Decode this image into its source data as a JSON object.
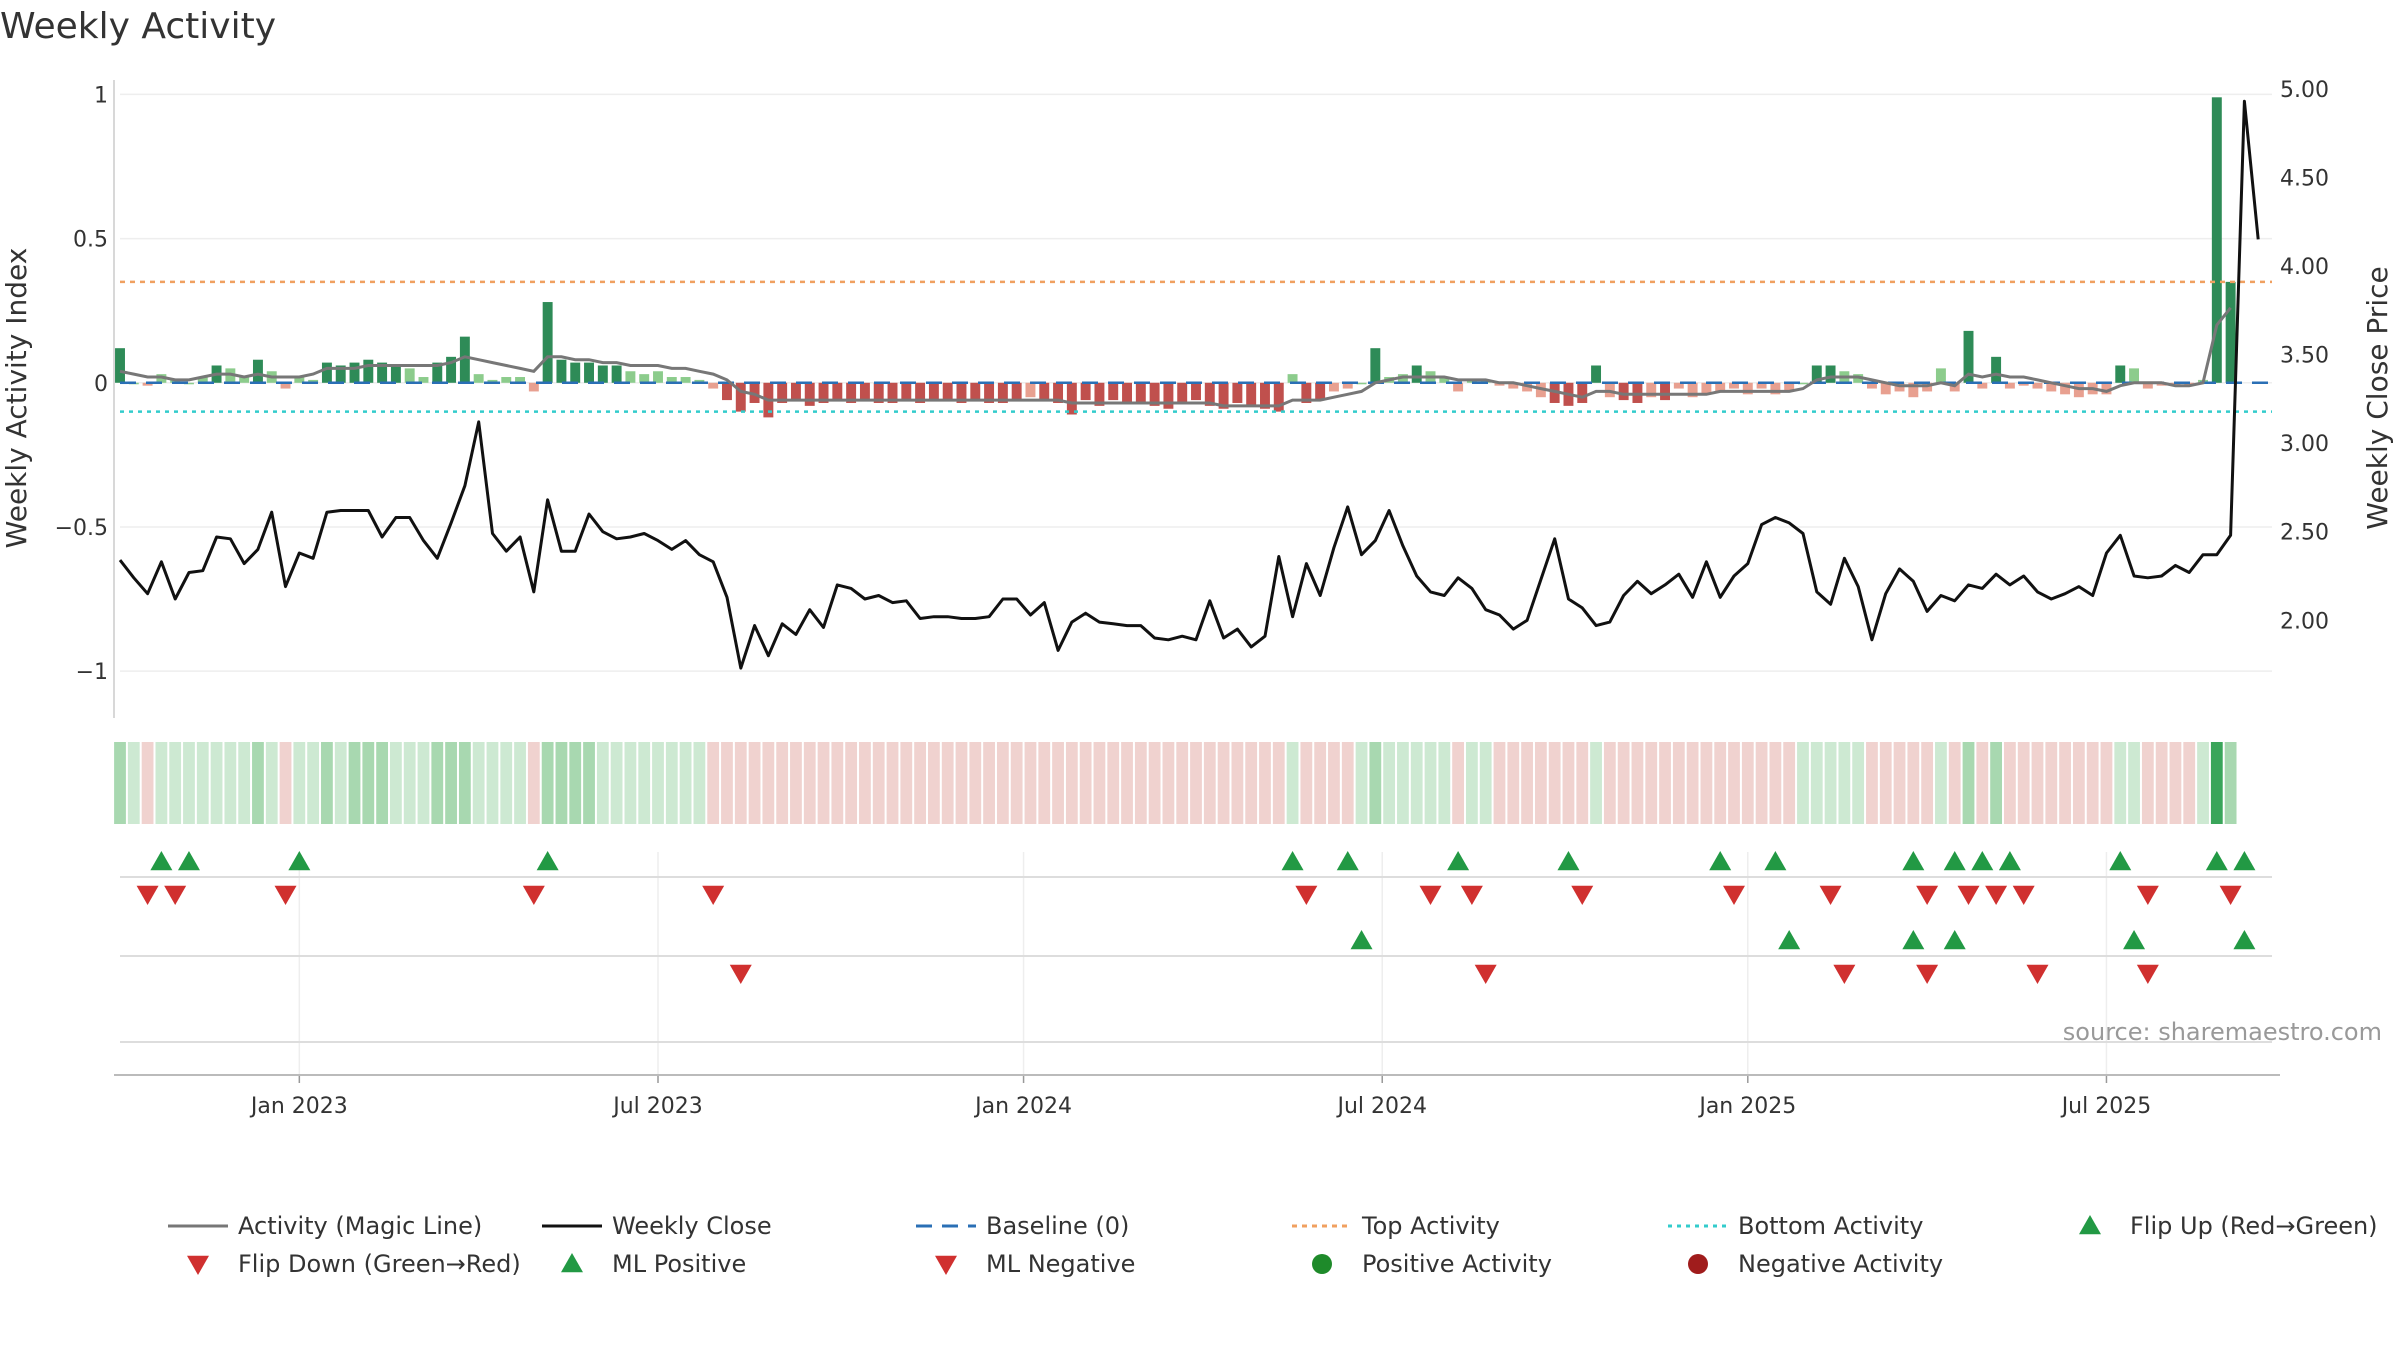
{
  "chart_data": {
    "type": "bar+line",
    "title": "Weekly Activity",
    "ylabel_left": "Weekly Activity Index",
    "ylabel_right": "Weekly Close Price",
    "source": "source: sharemaestro.com",
    "yleft_range": [
      -1.1,
      1.05
    ],
    "yleft_ticks": [
      {
        "v": 1,
        "label": "1"
      },
      {
        "v": 0.5,
        "label": "0.5"
      },
      {
        "v": 0,
        "label": "0"
      },
      {
        "v": -0.5,
        "label": "−0.5"
      },
      {
        "v": -1,
        "label": "−1"
      }
    ],
    "yright_range": [
      1.55,
      5.05
    ],
    "yright_ticks": [
      "5.00",
      "4.50",
      "4.00",
      "3.50",
      "3.00",
      "2.50",
      "2.00"
    ],
    "x_ticks": [
      {
        "week": 13,
        "label": "Jan 2023"
      },
      {
        "week": 39,
        "label": "Jul 2023"
      },
      {
        "week": 65.5,
        "label": "Jan 2024"
      },
      {
        "week": 91.5,
        "label": "Jul 2024"
      },
      {
        "week": 118,
        "label": "Jan 2025"
      },
      {
        "week": 144,
        "label": "Jul 2025"
      }
    ],
    "top_activity": 0.35,
    "bottom_activity": -0.1,
    "weeks": 157,
    "activity": [
      0.12,
      0.0,
      -0.01,
      0.03,
      0.01,
      0.0,
      0.02,
      0.06,
      0.05,
      0.02,
      0.08,
      0.04,
      -0.02,
      0.02,
      0.01,
      0.07,
      0.06,
      0.07,
      0.08,
      0.07,
      0.06,
      0.05,
      0.02,
      0.07,
      0.09,
      0.16,
      0.03,
      0.01,
      0.02,
      0.02,
      -0.03,
      0.28,
      0.08,
      0.07,
      0.07,
      0.06,
      0.06,
      0.04,
      0.03,
      0.04,
      0.02,
      0.02,
      0.01,
      -0.02,
      -0.06,
      -0.1,
      -0.07,
      -0.12,
      -0.07,
      -0.06,
      -0.08,
      -0.07,
      -0.06,
      -0.07,
      -0.06,
      -0.07,
      -0.07,
      -0.06,
      -0.07,
      -0.06,
      -0.06,
      -0.07,
      -0.06,
      -0.07,
      -0.07,
      -0.06,
      -0.05,
      -0.06,
      -0.07,
      -0.11,
      -0.06,
      -0.08,
      -0.06,
      -0.07,
      -0.07,
      -0.08,
      -0.09,
      -0.07,
      -0.06,
      -0.08,
      -0.09,
      -0.07,
      -0.08,
      -0.09,
      -0.1,
      0.03,
      -0.07,
      -0.06,
      -0.03,
      -0.02,
      0.0,
      0.12,
      0.02,
      0.03,
      0.06,
      0.04,
      0.02,
      -0.03,
      0.01,
      0.01,
      -0.01,
      -0.02,
      -0.03,
      -0.05,
      -0.07,
      -0.08,
      -0.07,
      0.06,
      -0.05,
      -0.06,
      -0.07,
      -0.05,
      -0.06,
      -0.02,
      -0.05,
      -0.04,
      -0.03,
      -0.02,
      -0.04,
      -0.02,
      -0.04,
      -0.03,
      0.0,
      0.06,
      0.06,
      0.04,
      0.03,
      -0.02,
      -0.04,
      -0.03,
      -0.05,
      -0.03,
      0.05,
      -0.03,
      0.18,
      -0.02,
      0.09,
      -0.02,
      -0.01,
      -0.02,
      -0.03,
      -0.04,
      -0.05,
      -0.04,
      -0.04,
      0.06,
      0.05,
      -0.02,
      -0.01,
      -0.01,
      -0.01,
      0.01,
      0.99,
      0.35
    ],
    "magic_line": [
      0.04,
      0.03,
      0.02,
      0.02,
      0.01,
      0.01,
      0.02,
      0.03,
      0.03,
      0.02,
      0.03,
      0.02,
      0.02,
      0.02,
      0.03,
      0.05,
      0.05,
      0.05,
      0.06,
      0.06,
      0.06,
      0.06,
      0.06,
      0.06,
      0.07,
      0.09,
      0.08,
      0.07,
      0.06,
      0.05,
      0.04,
      0.09,
      0.09,
      0.08,
      0.08,
      0.07,
      0.07,
      0.06,
      0.06,
      0.06,
      0.05,
      0.05,
      0.04,
      0.03,
      0.01,
      -0.03,
      -0.04,
      -0.06,
      -0.06,
      -0.06,
      -0.06,
      -0.06,
      -0.06,
      -0.06,
      -0.06,
      -0.06,
      -0.06,
      -0.06,
      -0.06,
      -0.06,
      -0.06,
      -0.06,
      -0.06,
      -0.06,
      -0.06,
      -0.06,
      -0.06,
      -0.06,
      -0.06,
      -0.07,
      -0.07,
      -0.07,
      -0.07,
      -0.07,
      -0.07,
      -0.07,
      -0.07,
      -0.07,
      -0.07,
      -0.07,
      -0.08,
      -0.08,
      -0.08,
      -0.08,
      -0.08,
      -0.06,
      -0.06,
      -0.06,
      -0.05,
      -0.04,
      -0.03,
      0.0,
      0.01,
      0.02,
      0.02,
      0.02,
      0.02,
      0.01,
      0.01,
      0.01,
      0.0,
      0.0,
      -0.01,
      -0.02,
      -0.03,
      -0.04,
      -0.05,
      -0.03,
      -0.03,
      -0.04,
      -0.04,
      -0.04,
      -0.04,
      -0.04,
      -0.04,
      -0.04,
      -0.03,
      -0.03,
      -0.03,
      -0.03,
      -0.03,
      -0.03,
      -0.02,
      0.01,
      0.02,
      0.02,
      0.02,
      0.01,
      0.0,
      -0.01,
      -0.01,
      -0.01,
      0.0,
      -0.01,
      0.03,
      0.02,
      0.03,
      0.02,
      0.02,
      0.01,
      0.0,
      -0.01,
      -0.02,
      -0.02,
      -0.03,
      -0.01,
      0.0,
      0.0,
      0.0,
      -0.01,
      -0.01,
      0.0,
      0.2,
      0.26
    ],
    "weekly_close": [
      2.34,
      2.24,
      2.15,
      2.33,
      2.12,
      2.27,
      2.28,
      2.47,
      2.46,
      2.32,
      2.4,
      2.61,
      2.19,
      2.38,
      2.35,
      2.61,
      2.62,
      2.62,
      2.62,
      2.47,
      2.58,
      2.58,
      2.45,
      2.35,
      2.55,
      2.76,
      3.12,
      2.49,
      2.39,
      2.47,
      2.16,
      2.68,
      2.39,
      2.39,
      2.6,
      2.5,
      2.46,
      2.47,
      2.49,
      2.45,
      2.4,
      2.45,
      2.37,
      2.33,
      2.13,
      1.73,
      1.97,
      1.8,
      1.98,
      1.92,
      2.06,
      1.96,
      2.2,
      2.18,
      2.12,
      2.14,
      2.1,
      2.11,
      2.01,
      2.02,
      2.02,
      2.01,
      2.01,
      2.02,
      2.12,
      2.12,
      2.03,
      2.1,
      1.83,
      1.99,
      2.04,
      1.99,
      1.98,
      1.97,
      1.97,
      1.9,
      1.89,
      1.91,
      1.89,
      2.11,
      1.9,
      1.95,
      1.85,
      1.91,
      2.36,
      2.02,
      2.32,
      2.14,
      2.41,
      2.64,
      2.37,
      2.45,
      2.62,
      2.42,
      2.25,
      2.16,
      2.14,
      2.24,
      2.18,
      2.06,
      2.03,
      1.95,
      2.0,
      2.23,
      2.46,
      2.12,
      2.07,
      1.97,
      1.99,
      2.14,
      2.22,
      2.15,
      2.2,
      2.26,
      2.13,
      2.33,
      2.13,
      2.25,
      2.32,
      2.54,
      2.58,
      2.55,
      2.49,
      2.16,
      2.09,
      2.35,
      2.19,
      1.89,
      2.15,
      2.29,
      2.22,
      2.05,
      2.14,
      2.11,
      2.2,
      2.18,
      2.26,
      2.2,
      2.25,
      2.16,
      2.12,
      2.15,
      2.19,
      2.14,
      2.38,
      2.48,
      2.25,
      2.24,
      2.25,
      2.31,
      2.27,
      2.37,
      2.37,
      2.48,
      4.93,
      4.15
    ],
    "markers": {
      "flip_up": [
        3,
        5,
        13,
        31,
        85,
        89,
        97,
        105,
        116,
        120,
        130,
        133,
        135,
        137,
        145,
        152,
        154
      ],
      "flip_down": [
        2,
        4,
        12,
        30,
        43,
        86,
        95,
        98,
        106,
        117,
        124,
        131,
        134,
        136,
        138,
        147,
        153
      ],
      "ml_positive": [
        90,
        121,
        130,
        133,
        146,
        154
      ],
      "ml_negative": [
        45,
        99,
        125,
        131,
        139,
        147
      ]
    },
    "legend": [
      {
        "key": "magic",
        "label": "Activity (Magic Line)"
      },
      {
        "key": "close",
        "label": "Weekly Close"
      },
      {
        "key": "baseline",
        "label": "Baseline (0)"
      },
      {
        "key": "top",
        "label": "Top Activity"
      },
      {
        "key": "bottom",
        "label": "Bottom Activity"
      },
      {
        "key": "flipup",
        "label": "Flip Up (Red→Green)"
      },
      {
        "key": "flipdown",
        "label": "Flip Down (Green→Red)"
      },
      {
        "key": "mlpos",
        "label": "ML Positive"
      },
      {
        "key": "mlneg",
        "label": "ML Negative"
      },
      {
        "key": "posact",
        "label": "Positive Activity"
      },
      {
        "key": "negact",
        "label": "Negative Activity"
      }
    ],
    "colors": {
      "magic_line": "#777777",
      "close": "#111111",
      "baseline": "#2a6fb5",
      "top": "#f0a060",
      "bottom": "#33cccc",
      "pos_strong": "#2e8b57",
      "pos_light": "#8ccc8c",
      "neg_strong": "#c0504d",
      "neg_light": "#e8a090",
      "up_marker": "#229944",
      "down_marker": "#d0302f",
      "pos_dot": "#1e8a2a",
      "neg_dot": "#a01c1c"
    }
  }
}
